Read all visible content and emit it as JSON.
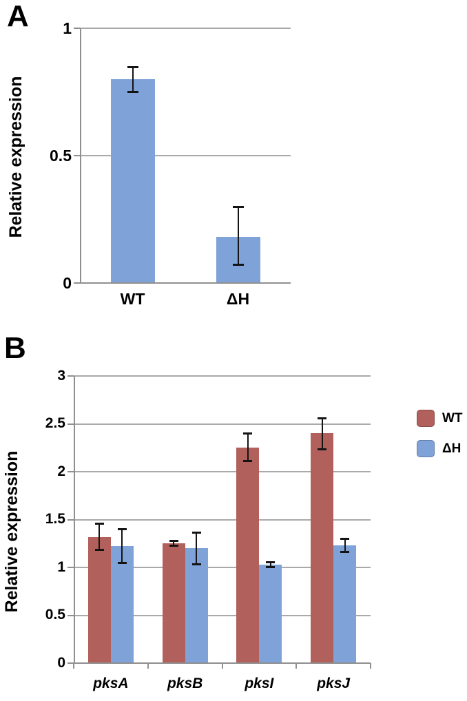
{
  "figure": {
    "panel_letters": [
      "A",
      "B"
    ]
  },
  "colors": {
    "grid": "#a9a9a9",
    "axis": "#8f8f8f",
    "error_bar": "#141414",
    "wt_series": "#b2605c",
    "dh_series": "#7fa2d8"
  },
  "chart_data": [
    {
      "panel": "A",
      "type": "bar",
      "title": "",
      "xlabel": "",
      "ylabel": "Relative expression",
      "categories": [
        "WT",
        "ΔH"
      ],
      "categories_italic": false,
      "series": [
        {
          "name": "",
          "color": "#7fa2d8",
          "values": [
            0.8,
            0.18
          ],
          "error_plus": [
            0.05,
            0.12
          ],
          "error_minus": [
            0.05,
            0.11
          ]
        }
      ],
      "ylim": [
        0,
        1
      ],
      "yticks": [
        "0",
        "0.5",
        "1"
      ],
      "grid": true,
      "legend": null
    },
    {
      "panel": "B",
      "type": "bar",
      "title": "",
      "xlabel": "",
      "ylabel": "Relative expression",
      "categories": [
        "pksA",
        "pksB",
        "pksI",
        "pksJ"
      ],
      "categories_italic": true,
      "series": [
        {
          "name": "WT",
          "color": "#b2605c",
          "values": [
            1.32,
            1.25,
            2.25,
            2.4
          ],
          "error_plus": [
            0.14,
            0.03,
            0.15,
            0.16
          ],
          "error_minus": [
            0.14,
            0.03,
            0.14,
            0.17
          ]
        },
        {
          "name": "ΔH",
          "color": "#7fa2d8",
          "values": [
            1.22,
            1.2,
            1.03,
            1.23
          ],
          "error_plus": [
            0.18,
            0.17,
            0.03,
            0.07
          ],
          "error_minus": [
            0.18,
            0.17,
            0.03,
            0.07
          ]
        }
      ],
      "ylim": [
        0,
        3
      ],
      "yticks": [
        "0",
        "0.5",
        "1",
        "1.5",
        "2",
        "2.5",
        "3"
      ],
      "grid": true,
      "legend": {
        "position": "right",
        "entries": [
          "WT",
          "ΔH"
        ]
      }
    }
  ]
}
